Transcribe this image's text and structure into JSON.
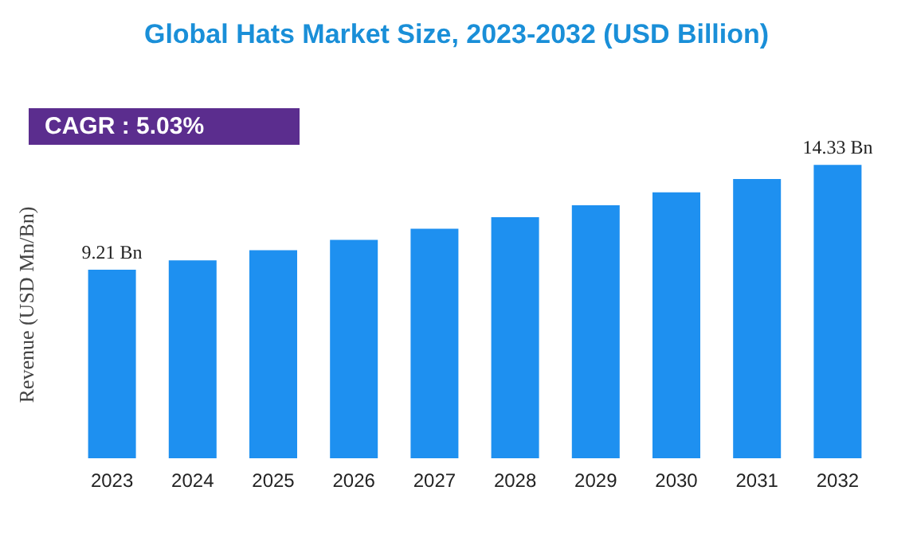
{
  "chart_data": {
    "type": "bar",
    "title": "Global Hats Market Size, 2023-2032 (USD Billion)",
    "ylabel": "Revenue (USD Mn/Bn)",
    "categories": [
      "2023",
      "2024",
      "2025",
      "2026",
      "2027",
      "2028",
      "2029",
      "2030",
      "2031",
      "2032"
    ],
    "values": [
      9.21,
      9.67,
      10.16,
      10.67,
      11.21,
      11.77,
      12.36,
      12.99,
      13.64,
      14.33
    ],
    "value_labels": [
      "9.21 Bn",
      null,
      null,
      null,
      null,
      null,
      null,
      null,
      null,
      "14.33 Bn"
    ],
    "color": "#1e90f0",
    "annotations": [
      "CAGR :  5.03%"
    ],
    "grid": false
  }
}
